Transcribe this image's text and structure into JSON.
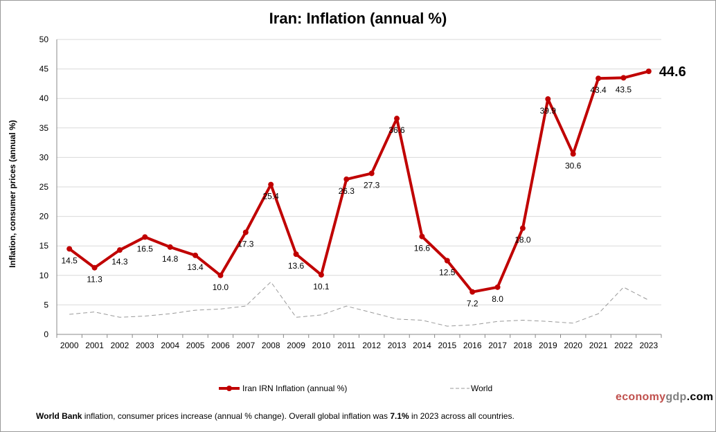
{
  "chart_data": {
    "type": "line",
    "title": "Iran: Inflation (annual %)",
    "ylabel": "Inflation, consumer prices (annual %)",
    "xlabel": "",
    "ylim": [
      0,
      50
    ],
    "yticks": [
      0,
      5,
      10,
      15,
      20,
      25,
      30,
      35,
      40,
      45,
      50
    ],
    "grid": true,
    "legend_placement": "bottom",
    "categories": [
      "2000",
      "2001",
      "2002",
      "2003",
      "2004",
      "2005",
      "2006",
      "2007",
      "2008",
      "2009",
      "2010",
      "2011",
      "2012",
      "2013",
      "2014",
      "2015",
      "2016",
      "2017",
      "2018",
      "2019",
      "2020",
      "2021",
      "2022",
      "2023"
    ],
    "series": [
      {
        "name": "Iran IRN Inflation (annual %)",
        "color": "#c00000",
        "values": [
          14.5,
          11.3,
          14.3,
          16.5,
          14.8,
          13.4,
          10.0,
          17.3,
          25.4,
          13.6,
          10.1,
          26.3,
          27.3,
          36.6,
          16.6,
          12.5,
          7.2,
          8.0,
          18.0,
          39.9,
          30.6,
          43.4,
          43.5,
          44.6
        ],
        "labels": [
          "14.5",
          "11.3",
          "14.3",
          "16.5",
          "14.8",
          "13.4",
          "10.0",
          "17.3",
          "25.4",
          "13.6",
          "10.1",
          "26.3",
          "27.3",
          "36.6",
          "16.6",
          "12.5",
          "7.2",
          "8.0",
          "18.0",
          "39.9",
          "30.6",
          "43.4",
          "43.5",
          "44.6"
        ]
      },
      {
        "name": "World",
        "color": "#999999",
        "style": "dashed",
        "values": [
          3.4,
          3.8,
          2.9,
          3.1,
          3.5,
          4.1,
          4.3,
          4.8,
          8.9,
          2.9,
          3.3,
          4.8,
          3.7,
          2.6,
          2.4,
          1.4,
          1.6,
          2.2,
          2.4,
          2.2,
          1.9,
          3.5,
          8.0,
          5.8
        ]
      }
    ],
    "annotation": "44.6"
  },
  "footer": {
    "source_bold": "World Bank",
    "source_text": " inflation, consumer prices increase (annual  % change).   Overall  global  inflation was ",
    "global_value": "7.1%",
    "tail": " in 2023 across all countries."
  },
  "logo": {
    "part1": "economy",
    "part2": "gdp",
    "part3": ".com",
    "colors": [
      "#c0504d",
      "#808080",
      "#000000"
    ]
  }
}
